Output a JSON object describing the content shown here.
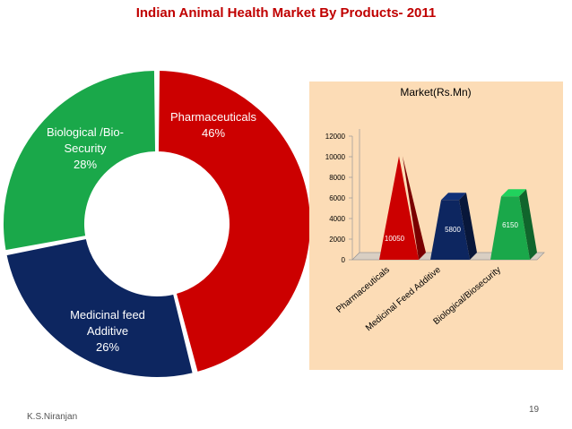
{
  "slide": {
    "title": "Indian Animal Health Market By Products- 2011",
    "author": "K.S.Niranjan",
    "page_number": "19"
  },
  "chart_data": [
    {
      "type": "pie",
      "subtype": "donut",
      "slices": [
        {
          "label_lines": [
            "Pharmaceuticals",
            "46%"
          ],
          "value": 46,
          "color": "#cc0000",
          "label_color": "#ffffff"
        },
        {
          "label_lines": [
            "Medicinal  feed",
            "Additive",
            "26%"
          ],
          "value": 26,
          "color": "#0d2660",
          "label_color": "#ffffff"
        },
        {
          "label_lines": [
            "Biological /Bio-",
            "Security",
            "28%"
          ],
          "value": 28,
          "color": "#1aa84a",
          "label_color": "#ffffff"
        }
      ]
    },
    {
      "type": "bar",
      "subtype": "3d-pyramid",
      "title": "Market(Rs.Mn)",
      "categories": [
        "Pharmaceuticals",
        "Medicinal Feed Additive",
        "Biological/Biosecurity"
      ],
      "values": [
        10050,
        5800,
        6150
      ],
      "value_labels": [
        "10050",
        "5800",
        "6150"
      ],
      "ylim": [
        0,
        12000
      ],
      "yticks": [
        "0",
        "2000",
        "4000",
        "6000",
        "8000",
        "10000",
        "12000"
      ],
      "colors": [
        "#cc0000",
        "#0d2660",
        "#1aa84a"
      ],
      "grid": false
    }
  ]
}
